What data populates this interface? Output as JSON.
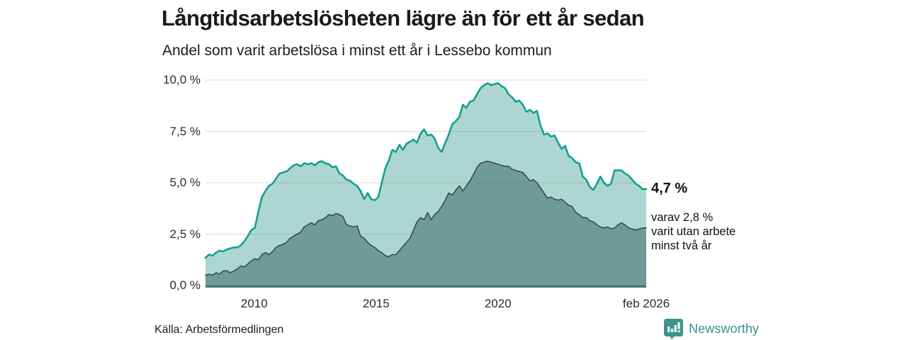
{
  "header": {
    "title": "Långtidsarbetslösheten lägre än för ett år sedan",
    "subtitle": "Andel som varit arbetslösa i minst ett år i Lessebo kommun"
  },
  "chart_data": {
    "type": "area",
    "title": "Långtidsarbetslösheten lägre än för ett år sedan",
    "subtitle": "Andel som varit arbetslösa i minst ett år i Lessebo kommun",
    "region": "Lessebo kommun",
    "y_range": [
      0,
      10
    ],
    "y_ticks": [
      {
        "label": "10,0 %",
        "value": 10.0
      },
      {
        "label": "7,5 %",
        "value": 7.5
      },
      {
        "label": "5,0 %",
        "value": 5.0
      },
      {
        "label": "2,5 %",
        "value": 2.5
      },
      {
        "label": "0,0 %",
        "value": 0.0
      }
    ],
    "x_range_years": [
      2008.0,
      2026.083
    ],
    "x_ticks": [
      {
        "label": "2010",
        "year": 2010.0
      },
      {
        "label": "2015",
        "year": 2015.0
      },
      {
        "label": "2020",
        "year": 2020.0
      },
      {
        "label": "feb 2026",
        "year": 2026.083
      }
    ],
    "points_evenly_spaced_over_x_range": true,
    "grid": "horizontal",
    "legend": "none",
    "series": [
      {
        "name": "Arbetslösa minst ett år (totalt)",
        "latest_label": "4,7 %",
        "fill": "#aed6d0",
        "line": "#10a190",
        "line_width": 2.6,
        "values": [
          1.35,
          1.5,
          1.45,
          1.6,
          1.7,
          1.65,
          1.75,
          1.8,
          1.85,
          1.85,
          1.95,
          2.15,
          2.4,
          2.7,
          2.8,
          3.6,
          4.3,
          4.6,
          4.85,
          4.95,
          5.2,
          5.45,
          5.5,
          5.55,
          5.7,
          5.85,
          5.9,
          5.8,
          5.95,
          5.9,
          5.95,
          5.85,
          6.0,
          6.05,
          5.95,
          5.9,
          5.75,
          5.8,
          5.45,
          5.35,
          5.15,
          5.1,
          4.95,
          4.85,
          4.6,
          4.2,
          4.5,
          4.2,
          4.15,
          4.3,
          5.0,
          5.7,
          6.1,
          6.6,
          6.5,
          6.85,
          6.6,
          6.9,
          7.0,
          7.1,
          6.95,
          7.4,
          7.6,
          7.3,
          7.35,
          7.15,
          6.7,
          6.5,
          6.95,
          7.35,
          7.85,
          8.0,
          8.2,
          8.8,
          8.65,
          8.95,
          9.0,
          9.3,
          9.6,
          9.75,
          9.85,
          9.75,
          9.8,
          9.85,
          9.7,
          9.6,
          9.3,
          9.15,
          8.95,
          9.0,
          8.8,
          8.45,
          8.55,
          8.4,
          8.5,
          7.8,
          7.35,
          7.4,
          7.25,
          7.3,
          6.95,
          6.65,
          6.8,
          6.3,
          6.2,
          6.0,
          5.95,
          5.3,
          5.15,
          4.8,
          4.65,
          4.95,
          5.3,
          5.0,
          4.85,
          4.95,
          5.6,
          5.6,
          5.6,
          5.45,
          5.35,
          5.15,
          4.95,
          4.85,
          4.68,
          4.7
        ]
      },
      {
        "name": "Varav utan arbete minst två år",
        "latest_label": "2,8 %",
        "fill": "#6f9b96",
        "line": "#3a4a4a",
        "line_width": 1.6,
        "values": [
          0.5,
          0.55,
          0.5,
          0.62,
          0.55,
          0.7,
          0.72,
          0.62,
          0.7,
          0.8,
          0.95,
          0.9,
          1.05,
          1.2,
          1.3,
          1.25,
          1.5,
          1.6,
          1.5,
          1.65,
          1.85,
          1.95,
          2.0,
          2.1,
          2.3,
          2.4,
          2.5,
          2.6,
          2.85,
          2.95,
          3.05,
          2.95,
          3.15,
          3.2,
          3.3,
          3.45,
          3.4,
          3.5,
          3.45,
          3.35,
          2.95,
          2.9,
          2.85,
          2.9,
          2.4,
          2.3,
          2.1,
          1.95,
          1.85,
          1.7,
          1.6,
          1.45,
          1.4,
          1.5,
          1.5,
          1.7,
          1.9,
          2.1,
          2.3,
          2.7,
          3.1,
          3.3,
          3.2,
          3.55,
          3.2,
          3.45,
          3.6,
          3.85,
          4.15,
          4.5,
          4.4,
          4.65,
          4.85,
          4.6,
          4.85,
          5.1,
          5.4,
          5.75,
          5.95,
          6.0,
          6.05,
          6.0,
          5.95,
          5.9,
          5.85,
          5.8,
          5.8,
          5.65,
          5.6,
          5.55,
          5.5,
          5.3,
          5.1,
          5.15,
          5.0,
          4.75,
          4.5,
          4.25,
          4.3,
          4.2,
          4.15,
          4.2,
          4.05,
          3.9,
          3.85,
          3.55,
          3.45,
          3.3,
          3.3,
          3.15,
          3.1,
          2.95,
          2.85,
          2.8,
          2.85,
          2.75,
          2.8,
          2.95,
          3.05,
          2.95,
          2.8,
          2.75,
          2.7,
          2.75,
          2.8,
          2.8
        ]
      }
    ],
    "baseline_color": "#4a7a75",
    "gridline_color": "rgba(110,110,110,0.28)"
  },
  "annotations": {
    "latest_total": "4,7 %",
    "detail_lines": [
      "varav 2,8 %",
      "varit utan arbete",
      "minst två år"
    ]
  },
  "footer": {
    "source": "Källa: Arbetsförmedlingen",
    "brand": "Newsworthy"
  },
  "colors": {
    "brand_teal": "#35918a",
    "area_light": "#aed6d0",
    "area_dark": "#6f9b96",
    "line_teal": "#10a190",
    "line_dark": "#3a4a4a",
    "baseline": "#4a7a75",
    "text": "#1a1a1a"
  }
}
